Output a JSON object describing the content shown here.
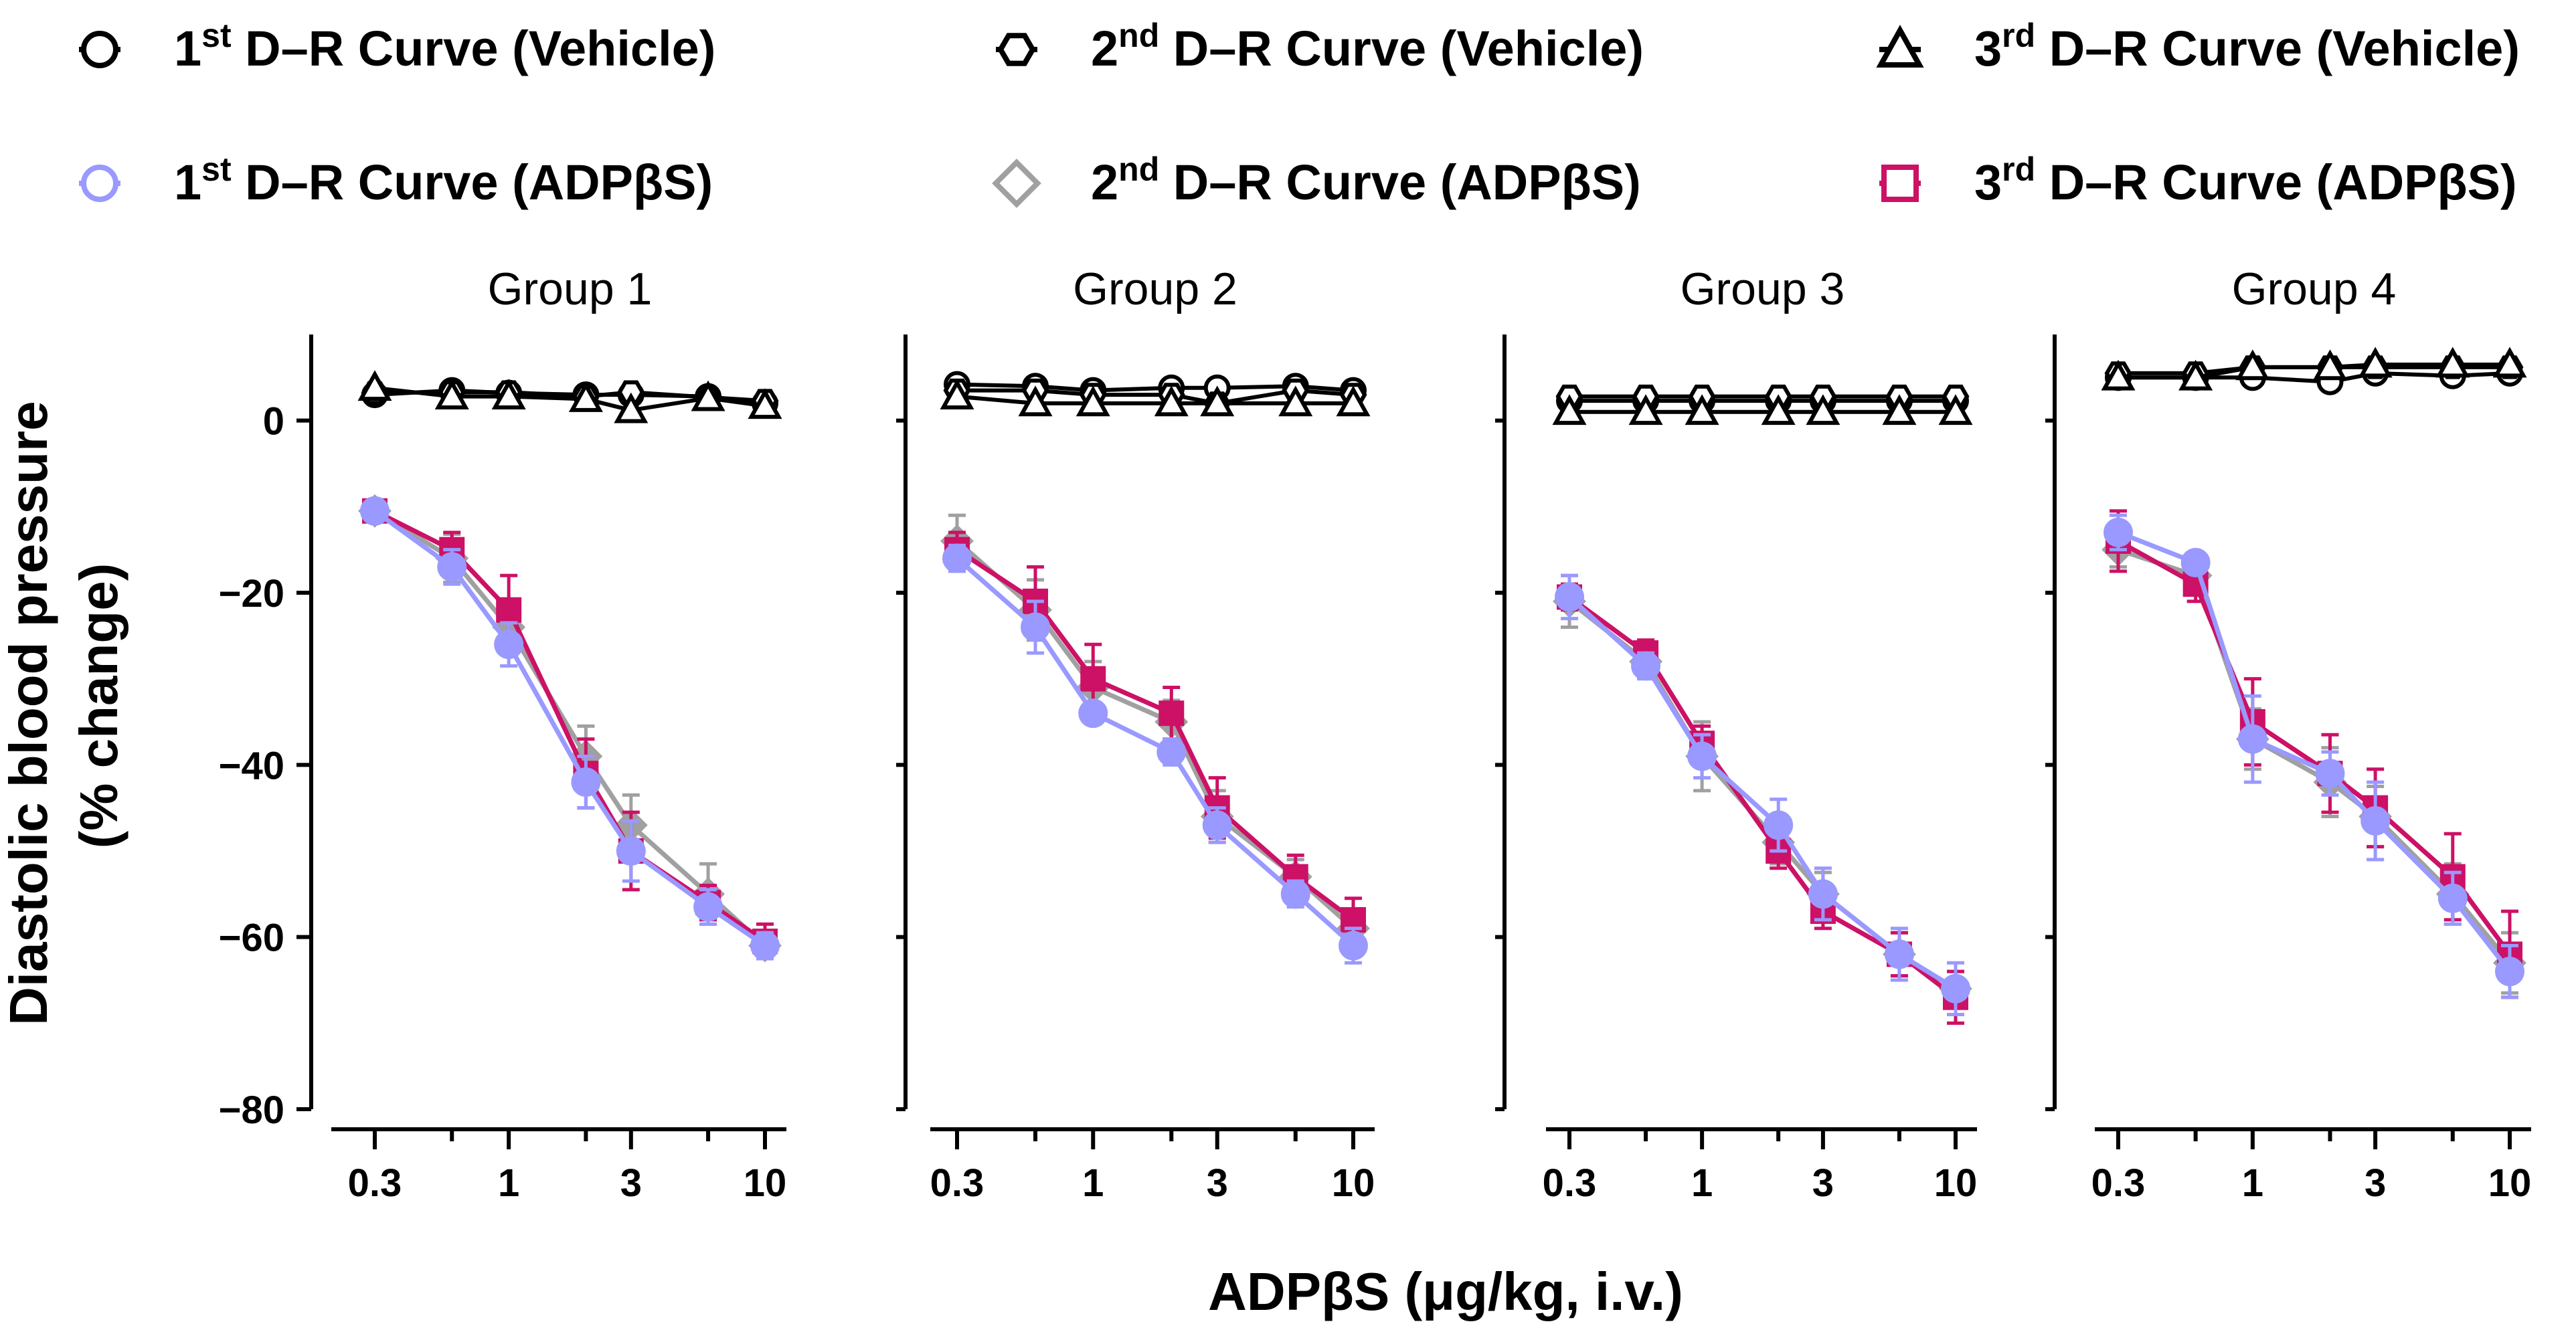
{
  "colors": {
    "vehicle": "#000000",
    "adp1": "#9999ff",
    "adp2": "#a0a0a0",
    "adp3": "#cc1166"
  },
  "legend": [
    {
      "ord": "1",
      "sup": "st",
      "text": "D–R Curve (Vehicle)",
      "marker": "circle-open",
      "color": "#000000"
    },
    {
      "ord": "2",
      "sup": "nd",
      "text": "D–R Curve (Vehicle)",
      "marker": "hexagon-open",
      "color": "#000000"
    },
    {
      "ord": "3",
      "sup": "rd",
      "text": "D–R Curve (Vehicle)",
      "marker": "triangle-open",
      "color": "#000000"
    },
    {
      "ord": "1",
      "sup": "st",
      "text": "D–R Curve (ADPβS)",
      "marker": "circle-open",
      "color": "#9999ff"
    },
    {
      "ord": "2",
      "sup": "nd",
      "text": "D–R Curve (ADPβS)",
      "marker": "diamond-open",
      "color": "#a0a0a0"
    },
    {
      "ord": "3",
      "sup": "rd",
      "text": "D–R Curve (ADPβS)",
      "marker": "square-open",
      "color": "#cc1166"
    }
  ],
  "axes": {
    "ylabel_line1": "Diastolic blood pressure",
    "ylabel_line2": "(% change)",
    "xlabel": "ADPβS (μg/kg, i.v.)",
    "yticks": [
      0,
      -20,
      -40,
      -60,
      -80
    ],
    "ytick_labels": [
      "0",
      "−20",
      "−40",
      "−60",
      "−80"
    ],
    "xticks_major": [
      0.3,
      1,
      3,
      10
    ],
    "xtick_labels": [
      "0.3",
      "1",
      "3",
      "10"
    ],
    "xticks_minor": [
      0.6,
      2,
      6
    ]
  },
  "chart_data": {
    "type": "line",
    "x_scale": "log",
    "x": [
      0.3,
      0.6,
      1,
      2,
      3,
      6,
      10
    ],
    "ylim": [
      -80,
      10
    ],
    "panels": [
      {
        "title": "Group 1",
        "series": [
          {
            "key": "veh1",
            "values": [
              3,
              3.5,
              3.2,
              3,
              3,
              2.8,
              2
            ]
          },
          {
            "key": "veh2",
            "values": [
              3.2,
              3.3,
              3.3,
              2.8,
              3.3,
              2.7,
              2.3
            ]
          },
          {
            "key": "veh3",
            "values": [
              3.8,
              2.8,
              2.8,
              2.5,
              1.2,
              2.6,
              1.7
            ]
          },
          {
            "key": "adp2",
            "values": [
              -10.5,
              -16,
              -24,
              -39,
              -47,
              -55,
              -61
            ],
            "err": [
              1.2,
              2.8,
              3,
              3.5,
              3.5,
              3.5,
              1.5
            ]
          },
          {
            "key": "adp3",
            "values": [
              -10.5,
              -15,
              -22,
              -41,
              -50,
              -56,
              -60.5
            ],
            "err": [
              1.2,
              2,
              4,
              4,
              4.5,
              2,
              2
            ]
          },
          {
            "key": "adp1",
            "values": [
              -10.5,
              -17,
              -26,
              -42,
              -50,
              -56.5,
              -61
            ],
            "err": [
              1.2,
              2,
              2.5,
              3,
              3.5,
              2,
              1.5
            ]
          }
        ]
      },
      {
        "title": "Group 2",
        "series": [
          {
            "key": "veh1",
            "values": [
              4.2,
              4,
              3.5,
              3.8,
              3.8,
              4,
              3.5
            ]
          },
          {
            "key": "veh2",
            "values": [
              3.5,
              3.5,
              3,
              3,
              2,
              3.5,
              3
            ]
          },
          {
            "key": "veh3",
            "values": [
              2.8,
              2,
              2,
              2,
              2,
              2,
              2
            ]
          },
          {
            "key": "adp2",
            "values": [
              -14,
              -22,
              -31,
              -35,
              -46,
              -53,
              -59
            ],
            "err": [
              3,
              3.5,
              3,
              2.5,
              3,
              2,
              2
            ]
          },
          {
            "key": "adp3",
            "values": [
              -15,
              -21,
              -30,
              -34,
              -45,
              -53,
              -58
            ],
            "err": [
              2,
              4,
              4,
              3,
              3.5,
              2.5,
              2.5
            ]
          },
          {
            "key": "adp1",
            "values": [
              -16,
              -24,
              -34,
              -38.5,
              -47,
              -55,
              -61
            ],
            "err": [
              1.5,
              3,
              1,
              1.5,
              2,
              1.5,
              2
            ]
          }
        ]
      },
      {
        "title": "Group 3",
        "series": [
          {
            "key": "veh1",
            "values": [
              2.3,
              2.3,
              2.3,
              2.3,
              2.3,
              2.3,
              2.3
            ]
          },
          {
            "key": "veh2",
            "values": [
              2.8,
              2.8,
              2.8,
              2.8,
              2.8,
              2.8,
              2.8
            ]
          },
          {
            "key": "veh3",
            "values": [
              1,
              1,
              1,
              1,
              1,
              1,
              1
            ]
          },
          {
            "key": "adp2",
            "values": [
              -21,
              -28,
              -39,
              -49,
              -55,
              -62,
              -66
            ],
            "err": [
              3,
              2,
              4,
              2.5,
              2.5,
              2.5,
              2
            ]
          },
          {
            "key": "adp3",
            "values": [
              -20.5,
              -27,
              -37.5,
              -50,
              -57,
              -62,
              -67
            ],
            "err": [
              1.5,
              1.5,
              2,
              2,
              2,
              2.5,
              3
            ]
          },
          {
            "key": "adp1",
            "values": [
              -20.5,
              -28.5,
              -39,
              -47,
              -55,
              -62,
              -66
            ],
            "err": [
              2.5,
              1.5,
              2.5,
              3,
              3,
              3,
              3
            ]
          }
        ]
      },
      {
        "title": "Group 4",
        "series": [
          {
            "key": "veh1",
            "values": [
              5,
              5,
              5,
              4.5,
              5.5,
              5.2,
              5.5
            ]
          },
          {
            "key": "veh2",
            "values": [
              5.5,
              5.5,
              6.2,
              6.2,
              6.2,
              6.2,
              6.2
            ]
          },
          {
            "key": "veh3",
            "values": [
              5,
              5,
              6.2,
              6.2,
              6.5,
              6.5,
              6.5
            ]
          },
          {
            "key": "adp2",
            "values": [
              -15,
              -18,
              -37,
              -42,
              -46,
              -55,
              -63
            ],
            "err": [
              2,
              1.5,
              3.5,
              4,
              3.5,
              3.5,
              3.5
            ]
          },
          {
            "key": "adp3",
            "values": [
              -14,
              -19,
              -35,
              -41,
              -45,
              -53,
              -62
            ],
            "err": [
              3.5,
              2,
              5,
              4.5,
              4.5,
              5,
              5
            ]
          },
          {
            "key": "adp1",
            "values": [
              -13,
              -16.5,
              -37,
              -41,
              -46.5,
              -55.5,
              -64
            ],
            "err": [
              2,
              1,
              5,
              2.5,
              4.5,
              3,
              3
            ]
          }
        ]
      }
    ]
  }
}
